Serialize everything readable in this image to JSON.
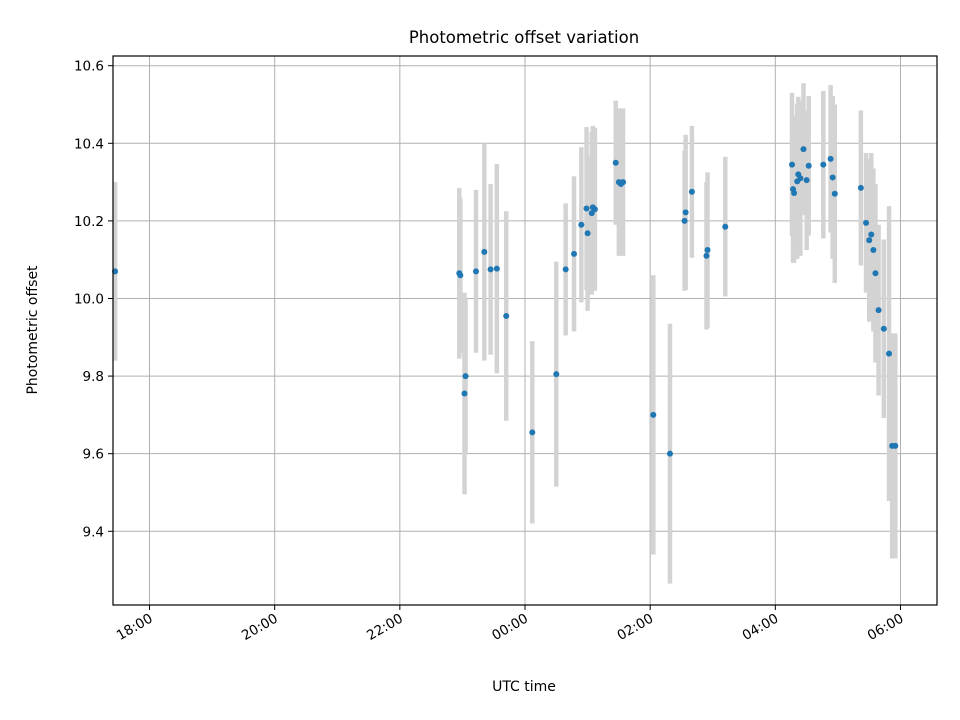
{
  "chart_data": {
    "type": "scatter",
    "title": "Photometric offset variation",
    "xlabel": "UTC time",
    "ylabel": "Photometric offset",
    "x_is_time": true,
    "xlim": [
      "17:25",
      "06:35"
    ],
    "ylim": [
      9.21,
      10.625
    ],
    "x_ticks": [
      "18:00",
      "20:00",
      "22:00",
      "00:00",
      "02:00",
      "04:00",
      "06:00"
    ],
    "y_ticks": [
      "9.4",
      "9.6",
      "9.8",
      "10.0",
      "10.2",
      "10.4",
      "10.6"
    ],
    "grid": true,
    "colors": {
      "point": "#1f77b4",
      "errorbar": "#d3d3d3",
      "grid": "#b0b0b0"
    },
    "series": [
      {
        "x": [
          "17:27",
          "22:57",
          "22:58",
          "23:02",
          "23:03",
          "23:13",
          "23:21",
          "23:27",
          "23:33",
          "23:42",
          "00:07",
          "00:30",
          "00:39",
          "00:47",
          "00:54",
          "00:59",
          "01:00",
          "01:04",
          "01:05",
          "01:07",
          "01:27",
          "01:30",
          "01:32",
          "01:34",
          "02:03",
          "02:19",
          "02:33",
          "02:34",
          "02:40",
          "02:54",
          "02:55",
          "03:12",
          "04:16",
          "04:17",
          "04:18",
          "04:21",
          "04:22",
          "04:24",
          "04:27",
          "04:30",
          "04:32",
          "04:46",
          "04:53",
          "04:55",
          "04:57",
          "05:22",
          "05:27",
          "05:30",
          "05:32",
          "05:34",
          "05:36",
          "05:39",
          "05:44",
          "05:49",
          "05:52",
          "05:55"
        ],
        "y": [
          10.07,
          10.065,
          10.06,
          9.755,
          9.8,
          10.07,
          10.12,
          10.075,
          10.077,
          9.955,
          9.655,
          9.805,
          10.075,
          10.115,
          10.19,
          10.232,
          10.168,
          10.22,
          10.235,
          10.23,
          10.35,
          10.3,
          10.295,
          10.3,
          9.7,
          9.6,
          10.2,
          10.222,
          10.275,
          10.11,
          10.125,
          10.185,
          10.345,
          10.282,
          10.272,
          10.302,
          10.32,
          10.31,
          10.385,
          10.305,
          10.342,
          10.345,
          10.36,
          10.312,
          10.27,
          10.285,
          10.195,
          10.15,
          10.165,
          10.125,
          10.065,
          9.97,
          9.922,
          9.858,
          9.62,
          9.62
        ],
        "yerr": [
          0.23,
          0.22,
          0.2,
          0.26,
          0.2,
          0.21,
          0.28,
          0.22,
          0.27,
          0.27,
          0.235,
          0.29,
          0.17,
          0.2,
          0.2,
          0.21,
          0.2,
          0.21,
          0.21,
          0.21,
          0.16,
          0.19,
          0.18,
          0.19,
          0.36,
          0.335,
          0.18,
          0.2,
          0.17,
          0.19,
          0.2,
          0.18,
          0.185,
          0.19,
          0.18,
          0.2,
          0.2,
          0.2,
          0.17,
          0.18,
          0.18,
          0.19,
          0.19,
          0.21,
          0.23,
          0.2,
          0.18,
          0.21,
          0.21,
          0.21,
          0.23,
          0.22,
          0.23,
          0.38,
          0.29,
          0.29
        ]
      }
    ]
  }
}
